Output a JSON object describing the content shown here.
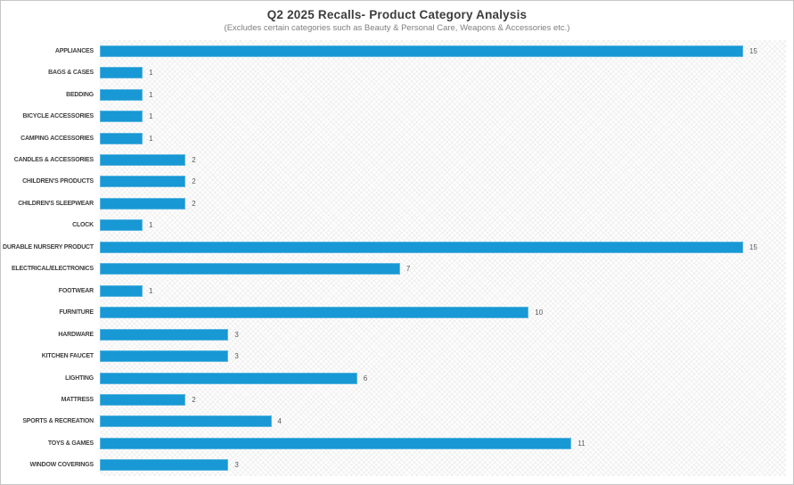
{
  "header": {
    "title": "Q2 2025 Recalls- Product Category Analysis",
    "subtitle": "(Excludes certain categories such as Beauty & Personal Care, Weapons & Accessories etc.)"
  },
  "colors": {
    "bar_fill": "#1898D4",
    "bar_border": "#5AB6E1",
    "title_text": "#3D3D3D",
    "subtitle_text": "#7F7F7F",
    "category_text": "#3F3F3F",
    "value_text": "#595959",
    "frame_border": "#C6C6C6",
    "plot_background": "#FDFDFD"
  },
  "chart_data": {
    "type": "bar",
    "orientation": "horizontal",
    "title": "Q2 2025 Recalls- Product Category Analysis",
    "subtitle": "(Excludes certain categories such as Beauty & Personal Care, Weapons & Accessories etc.)",
    "categories": [
      "APPLIANCES",
      "BAGS & CASES",
      "BEDDING",
      "BICYCLE ACCESSORIES",
      "CAMPING ACCESSORIES",
      "CANDLES & ACCESSORIES",
      "CHILDREN'S PRODUCTS",
      "CHILDREN'S SLEEPWEAR",
      "CLOCK",
      "DURABLE NURSERY PRODUCT",
      "ELECTRICAL/ELECTRONICS",
      "FOOTWEAR",
      "FURNITURE",
      "HARDWARE",
      "KITCHEN FAUCET",
      "LIGHTING",
      "MATTRESS",
      "SPORTS & RECREATION",
      "TOYS & GAMES",
      "WINDOW COVERINGS"
    ],
    "values": [
      15,
      1,
      1,
      1,
      1,
      2,
      2,
      2,
      1,
      15,
      7,
      1,
      10,
      3,
      3,
      6,
      2,
      4,
      11,
      3
    ],
    "xlabel": "",
    "ylabel": "",
    "xlim": [
      0,
      16
    ],
    "grid": false,
    "legend": false,
    "value_labels_shown": true,
    "plot_background_pattern": "diagonal-crosshatch"
  }
}
